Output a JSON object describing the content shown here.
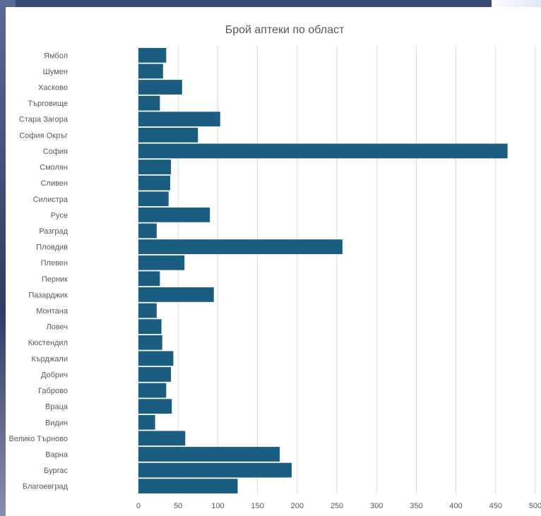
{
  "chart_data": {
    "type": "bar",
    "orientation": "horizontal",
    "title": "Брой аптеки по област",
    "categories": [
      "Ямбол",
      "Шумен",
      "Хасково",
      "Търговище",
      "Стара Загора",
      "София Окръг",
      "София",
      "Смолян",
      "Сливен",
      "Силистра",
      "Русе",
      "Разград",
      "Пловдив",
      "Плевен",
      "Перник",
      "Пазарджик",
      "Монтана",
      "Ловеч",
      "Кюстендил",
      "Кърджали",
      "Добрич",
      "Габрово",
      "Враца",
      "Видин",
      "Велико Търново",
      "Варна",
      "Бургас",
      "Благоевград"
    ],
    "values": [
      35,
      31,
      55,
      27,
      103,
      75,
      465,
      41,
      40,
      38,
      90,
      23,
      257,
      58,
      27,
      95,
      23,
      29,
      30,
      44,
      41,
      35,
      42,
      21,
      59,
      178,
      193,
      125
    ],
    "xlim": [
      0,
      500
    ],
    "xticks": [
      0,
      50,
      100,
      150,
      200,
      250,
      300,
      350,
      400,
      450,
      500
    ],
    "grid": true,
    "bar_color": "#1b5d80"
  }
}
